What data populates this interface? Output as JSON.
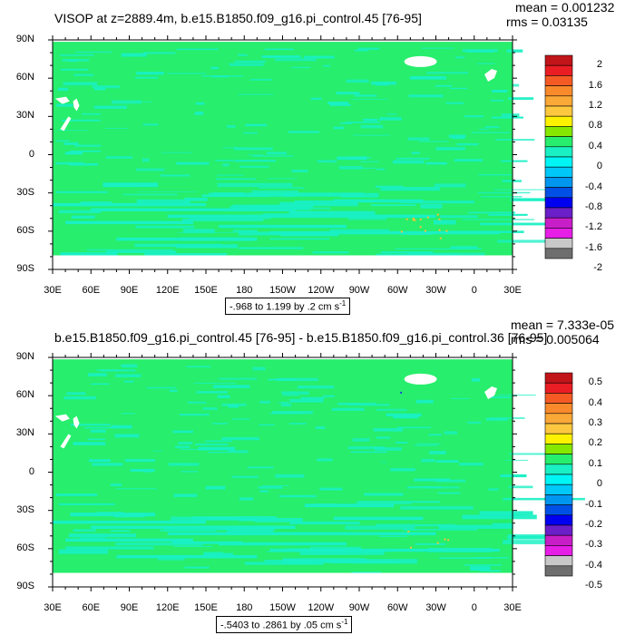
{
  "colors": {
    "ocean": "#27ee6c",
    "anomaly": "#19f0c4",
    "land": "#ffffff",
    "positive_speck": "#f6c23c",
    "negative_speck": "#1e4bd8"
  },
  "colorbar_colors": [
    "#c2151a",
    "#ea1d24",
    "#f55a24",
    "#f88a2c",
    "#faa837",
    "#fdc840",
    "#fff200",
    "#86e800",
    "#27ee6c",
    "#19f0c4",
    "#00f5f5",
    "#00c8f8",
    "#0096f0",
    "#0050e6",
    "#0000f0",
    "#6a1fc8",
    "#c81ec8",
    "#e61ee6",
    "#c8c8c8",
    "#6e6e6e"
  ],
  "chart_data": [
    {
      "type": "heatmap",
      "title": "VISOP at z=2889.4m, b.e15.B1850.f09_g16.pi_control.45 [76-95]",
      "mean": "mean = 0.001232",
      "rms": "rms = 0.03135",
      "contour_info": "-.968 to 1.199 by .2 cm s",
      "contour_unit_exp": "-1",
      "x_ticks": [
        "30E",
        "60E",
        "90E",
        "120E",
        "150E",
        "180",
        "150W",
        "120W",
        "90W",
        "60W",
        "30W",
        "0",
        "30E"
      ],
      "y_ticks": [
        "90N",
        "60N",
        "30N",
        "0",
        "30S",
        "60S",
        "90S"
      ],
      "xlim": [
        30,
        390
      ],
      "ylim": [
        -90,
        90
      ],
      "colorbar_labels": [
        "2",
        "1.6",
        "1.2",
        "0.8",
        "0.4",
        "0",
        "-0.4",
        "-0.8",
        "-1.2",
        "-1.6",
        "-2"
      ],
      "min": -0.968,
      "max": 1.199,
      "interval": 0.2
    },
    {
      "type": "heatmap",
      "title": "b.e15.B1850.f09_g16.pi_control.45 [76-95] - b.e15.B1850.f09_g16.pi_control.36 [76-95]",
      "mean": "mean = 7.333e-05",
      "rms": "rms = 0.005064",
      "contour_info": "-.5403 to .2861 by .05 cm s",
      "contour_unit_exp": "-1",
      "x_ticks": [
        "30E",
        "60E",
        "90E",
        "120E",
        "150E",
        "180",
        "150W",
        "120W",
        "90W",
        "60W",
        "30W",
        "0",
        "30E"
      ],
      "y_ticks": [
        "90N",
        "60N",
        "30N",
        "0",
        "30S",
        "60S",
        "90S"
      ],
      "xlim": [
        30,
        390
      ],
      "ylim": [
        -90,
        90
      ],
      "colorbar_labels": [
        "0.5",
        "0.4",
        "0.3",
        "0.2",
        "0.1",
        "0",
        "-0.1",
        "-0.2",
        "-0.3",
        "-0.4",
        "-0.5"
      ],
      "min": -0.5403,
      "max": 0.2861,
      "interval": 0.05
    }
  ]
}
